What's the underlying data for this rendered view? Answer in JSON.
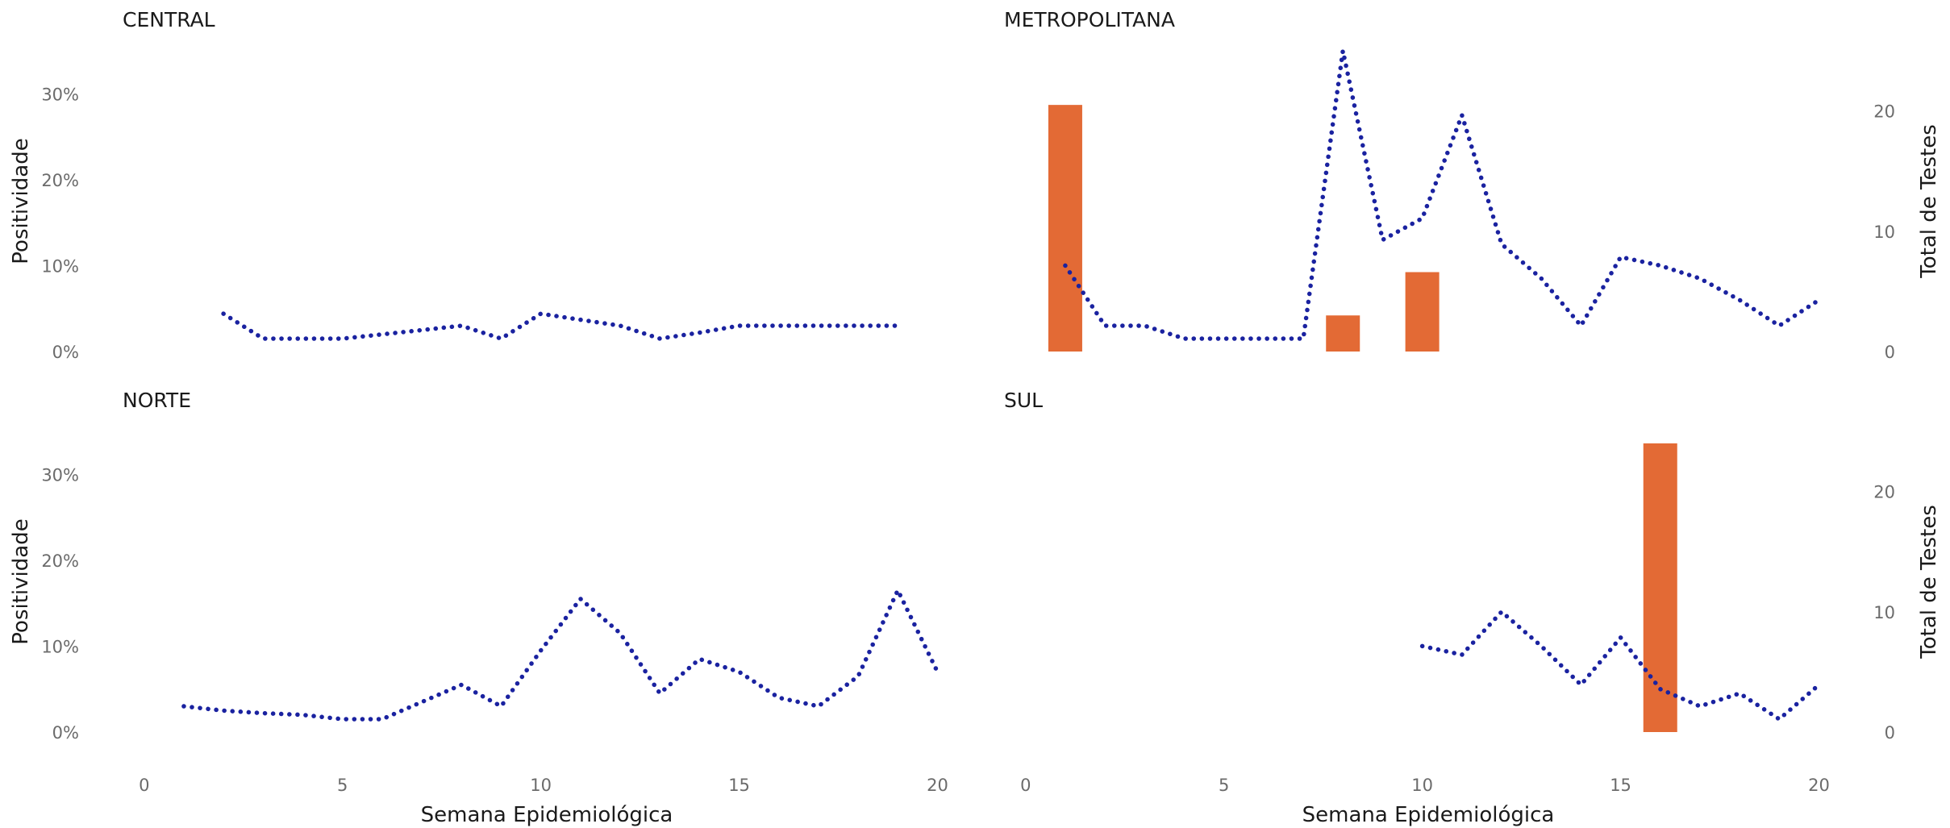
{
  "chart_data": {
    "type": "bar",
    "xlabel": "Semana Epidemiológica",
    "ylabel": "Positividade",
    "y2label": "Total de Testes",
    "x_ticks": [
      0,
      5,
      10,
      15,
      20
    ],
    "xlim": [
      -0.3,
      20.6
    ],
    "y_ticks": [
      0,
      10,
      20,
      30
    ],
    "y_tick_labels": [
      "0%",
      "10%",
      "20%",
      "30%"
    ],
    "ylim": [
      0,
      35
    ],
    "y2_ticks": [
      0,
      10,
      20
    ],
    "y2lim": [
      0,
      25
    ],
    "bar_color": "#E36A35",
    "line_color": "#1A22A0",
    "line_style": "dotted",
    "grid": false,
    "panels": [
      {
        "name": "CENTRAL",
        "bars": [],
        "positividade": [
          [
            2,
            4.4
          ],
          [
            3,
            1.5
          ],
          [
            4,
            1.5
          ],
          [
            5,
            1.5
          ],
          [
            6,
            2.0
          ],
          [
            7,
            2.5
          ],
          [
            8,
            3.0
          ],
          [
            9,
            1.5
          ],
          [
            10,
            4.4
          ],
          [
            11,
            3.7
          ],
          [
            12,
            3.0
          ],
          [
            13,
            1.5
          ],
          [
            14,
            2.2
          ],
          [
            15,
            3.0
          ],
          [
            16,
            3.0
          ],
          [
            17,
            3.0
          ],
          [
            18,
            3.0
          ],
          [
            19,
            3.0
          ]
        ]
      },
      {
        "name": "METROPOLITANA",
        "bars": [
          [
            1,
            20.5
          ],
          [
            8,
            3.0
          ],
          [
            10,
            6.6
          ]
        ],
        "positividade": [
          [
            1,
            10.0
          ],
          [
            2,
            3.0
          ],
          [
            3,
            3.0
          ],
          [
            4,
            1.5
          ],
          [
            5,
            1.5
          ],
          [
            6,
            1.5
          ],
          [
            7,
            1.5
          ],
          [
            8,
            35.0
          ],
          [
            9,
            13.0
          ],
          [
            10,
            15.5
          ],
          [
            11,
            27.5
          ],
          [
            12,
            12.5
          ],
          [
            13,
            8.5
          ],
          [
            14,
            3.0
          ],
          [
            15,
            11.0
          ],
          [
            16,
            10.0
          ],
          [
            17,
            8.5
          ],
          [
            18,
            6.0
          ],
          [
            19,
            3.0
          ],
          [
            20,
            6.0
          ]
        ]
      },
      {
        "name": "NORTE",
        "bars": [],
        "positividade": [
          [
            1,
            3.0
          ],
          [
            2,
            2.5
          ],
          [
            3,
            2.2
          ],
          [
            4,
            2.0
          ],
          [
            5,
            1.5
          ],
          [
            6,
            1.5
          ],
          [
            7,
            3.5
          ],
          [
            8,
            5.5
          ],
          [
            9,
            3.0
          ],
          [
            10,
            9.5
          ],
          [
            11,
            15.5
          ],
          [
            12,
            11.5
          ],
          [
            13,
            4.5
          ],
          [
            14,
            8.5
          ],
          [
            15,
            7.0
          ],
          [
            16,
            4.0
          ],
          [
            17,
            3.0
          ],
          [
            18,
            6.5
          ],
          [
            19,
            16.5
          ],
          [
            20,
            7.0
          ]
        ]
      },
      {
        "name": "SUL",
        "bars": [
          [
            16,
            24.0
          ]
        ],
        "positividade": [
          [
            10,
            10.0
          ],
          [
            11,
            9.0
          ],
          [
            12,
            14.0
          ],
          [
            13,
            10.0
          ],
          [
            14,
            5.5
          ],
          [
            15,
            11.0
          ],
          [
            16,
            5.0
          ],
          [
            17,
            3.0
          ],
          [
            18,
            4.5
          ],
          [
            19,
            1.5
          ],
          [
            20,
            5.5
          ]
        ]
      }
    ]
  }
}
